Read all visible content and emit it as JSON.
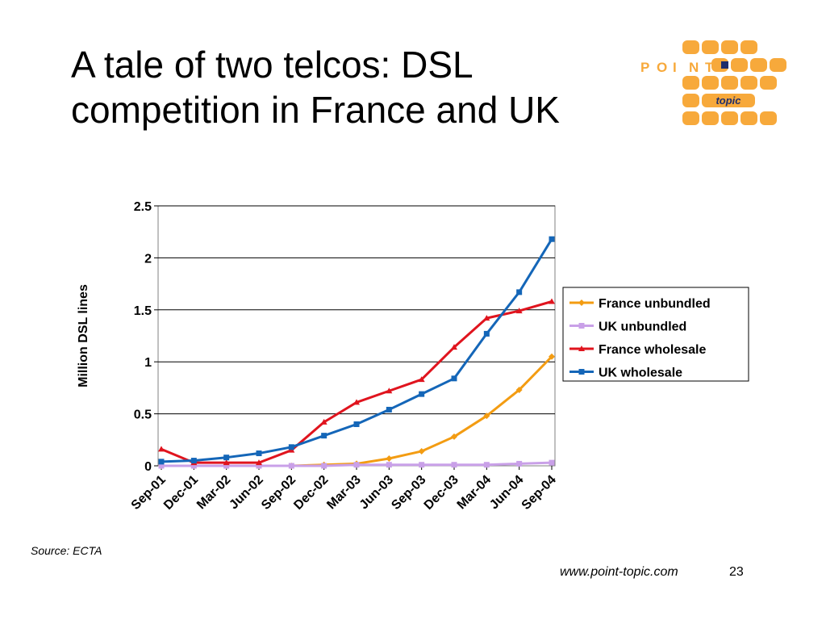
{
  "slide": {
    "title_lines": [
      "A tale of two telcos: DSL",
      "competition in France and UK"
    ],
    "source": "Source: ECTA",
    "url": "www.point-topic.com",
    "page": "23"
  },
  "logo": {
    "word": [
      "P",
      "O",
      "I",
      "N",
      "T"
    ],
    "sub": "topic",
    "color": "#f7a93b",
    "dark": "#1f2e6b"
  },
  "chart_data": {
    "type": "line",
    "title": "",
    "xlabel": "",
    "ylabel": "Million DSL lines",
    "categories": [
      "Sep-01",
      "Dec-01",
      "Mar-02",
      "Jun-02",
      "Sep-02",
      "Dec-02",
      "Mar-03",
      "Jun-03",
      "Sep-03",
      "Dec-03",
      "Mar-04",
      "Jun-04",
      "Sep-04"
    ],
    "ylim": [
      0,
      2.5
    ],
    "yticks": [
      "0",
      "0.5",
      "1",
      "1.5",
      "2",
      "2.5"
    ],
    "grid": true,
    "legend": "right",
    "series": [
      {
        "name": "France unbundled",
        "color": "#f39c12",
        "marker": "diamond",
        "values": [
          0.0,
          0.0,
          0.0,
          0.0,
          0.0,
          0.01,
          0.02,
          0.07,
          0.14,
          0.28,
          0.48,
          0.73,
          1.05
        ]
      },
      {
        "name": "UK unbundled",
        "color": "#c9a0e8",
        "marker": "square",
        "values": [
          0.0,
          0.0,
          0.0,
          0.0,
          0.0,
          0.0,
          0.01,
          0.01,
          0.01,
          0.01,
          0.01,
          0.02,
          0.03
        ]
      },
      {
        "name": "France wholesale",
        "color": "#e0141e",
        "marker": "triangle",
        "values": [
          0.16,
          0.03,
          0.03,
          0.03,
          0.15,
          0.42,
          0.61,
          0.72,
          0.83,
          1.14,
          1.42,
          1.49,
          1.58
        ]
      },
      {
        "name": "UK wholesale",
        "color": "#1466b8",
        "marker": "square",
        "values": [
          0.04,
          0.05,
          0.08,
          0.12,
          0.18,
          0.29,
          0.4,
          0.54,
          0.69,
          0.84,
          1.27,
          1.67,
          2.18
        ]
      }
    ]
  }
}
